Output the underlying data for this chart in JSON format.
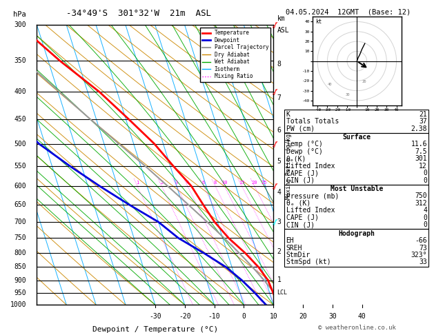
{
  "title_left": "-34°49'S  301°32'W  21m  ASL",
  "title_right": "04.05.2024  12GMT  (Base: 12)",
  "xlabel": "Dewpoint / Temperature (°C)",
  "pressure_levels": [
    300,
    350,
    400,
    450,
    500,
    550,
    600,
    650,
    700,
    750,
    800,
    850,
    900,
    950,
    1000
  ],
  "pressure_labels": [
    "300",
    "350",
    "400",
    "450",
    "500",
    "550",
    "600",
    "650",
    "700",
    "750",
    "800",
    "850",
    "900",
    "950",
    "1000"
  ],
  "temperature_profile": {
    "pressure": [
      1000,
      950,
      900,
      850,
      800,
      750,
      700,
      650,
      600,
      550,
      500,
      450,
      400,
      350,
      300
    ],
    "temp": [
      11.6,
      11.2,
      10.8,
      9.0,
      6.0,
      2.0,
      -1.0,
      -3.0,
      -5.0,
      -9.0,
      -13.0,
      -19.0,
      -26.0,
      -36.0,
      -46.0
    ]
  },
  "dewpoint_profile": {
    "pressure": [
      1000,
      950,
      900,
      850,
      800,
      750,
      700,
      650,
      600,
      550,
      500,
      450,
      400,
      350,
      300
    ],
    "temp": [
      7.5,
      5.0,
      2.0,
      -2.0,
      -8.0,
      -15.0,
      -20.0,
      -28.0,
      -36.0,
      -44.0,
      -52.0,
      -58.0,
      -62.0,
      -66.0,
      -68.0
    ]
  },
  "parcel_profile": {
    "pressure": [
      1000,
      950,
      900,
      850,
      800,
      750,
      700,
      650,
      600,
      550,
      500,
      450,
      400,
      350,
      300
    ],
    "temp": [
      11.6,
      11.6,
      9.5,
      7.0,
      4.0,
      0.5,
      -3.5,
      -8.0,
      -13.0,
      -18.5,
      -25.0,
      -32.0,
      -39.5,
      -48.0,
      -58.0
    ]
  },
  "lcl_pressure": 950,
  "info_panel": {
    "K": 21,
    "Totals_Totals": 37,
    "PW_cm": 2.38,
    "Surface": {
      "Temp_C": 11.6,
      "Dewp_C": 7.5,
      "theta_e_K": 301,
      "Lifted_Index": 12,
      "CAPE_J": 0,
      "CIN_J": 0
    },
    "Most_Unstable": {
      "Pressure_mb": 750,
      "theta_e_K": 312,
      "Lifted_Index": 4,
      "CAPE_J": 0,
      "CIN_J": 0
    },
    "Hodograph": {
      "EH": -66,
      "SREH": 73,
      "StmDir": "323°",
      "StmSpd_kt": 33
    }
  },
  "colors": {
    "temperature": "#ff0000",
    "dewpoint": "#0000dd",
    "parcel": "#999999",
    "dry_adiabat": "#cc8800",
    "wet_adiabat": "#00aa00",
    "isotherm": "#00aaff",
    "mixing_ratio": "#ff00ff",
    "background": "#ffffff"
  },
  "mixing_ratio_values": [
    1,
    2,
    3,
    4,
    6,
    8,
    10,
    15,
    20,
    25
  ],
  "wind_barbs": [
    {
      "pressure": 300,
      "color": "red"
    },
    {
      "pressure": 400,
      "color": "red"
    },
    {
      "pressure": 500,
      "color": "red"
    },
    {
      "pressure": 600,
      "color": "red"
    },
    {
      "pressure": 700,
      "color": "cyan"
    }
  ]
}
